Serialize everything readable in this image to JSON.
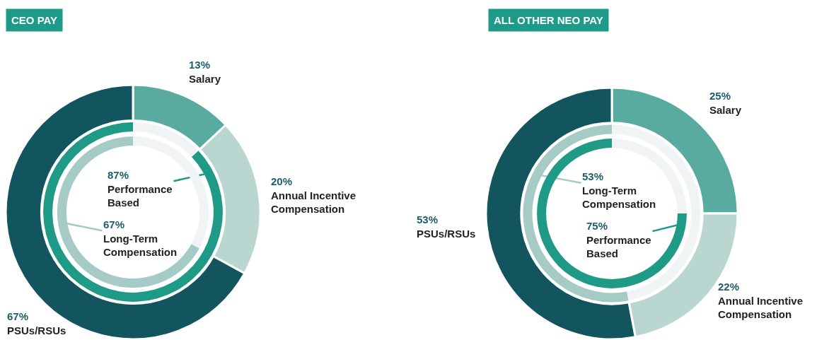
{
  "chart_data": [
    {
      "type": "donut",
      "title": "CEO PAY",
      "categories": [
        "Salary",
        "Annual Incentive Compensation",
        "PSUs/RSUs"
      ],
      "values": [
        13,
        20,
        67
      ],
      "value_labels": [
        "13%",
        "20%",
        "67%"
      ],
      "colors": [
        "#5aab9f",
        "#b9d6d1",
        "#13555e"
      ]
    },
    {
      "type": "donut",
      "categories": [
        "Performance Based",
        null
      ],
      "values": [
        87,
        13
      ],
      "value_labels": [
        "87%",
        null
      ],
      "colors": [
        "#1f9a87",
        "#f1f4f4"
      ]
    },
    {
      "type": "donut",
      "categories": [
        "Long-Term Compensation",
        null
      ],
      "values": [
        67,
        33
      ],
      "value_labels": [
        "67%",
        null
      ],
      "colors": [
        "#a6cbc6",
        "#f1f4f4"
      ]
    },
    {
      "type": "donut",
      "title": "ALL OTHER NEO PAY",
      "categories": [
        "Salary",
        "Annual Incentive Compensation",
        "PSUs/RSUs"
      ],
      "values": [
        25,
        22,
        53
      ],
      "value_labels": [
        "25%",
        "22%",
        "53%"
      ],
      "colors": [
        "#5aab9f",
        "#b9d6d1",
        "#13555e"
      ]
    },
    {
      "type": "donut",
      "categories": [
        "Long-Term Compensation",
        null
      ],
      "values": [
        53,
        47
      ],
      "value_labels": [
        "53%",
        null
      ],
      "colors": [
        "#a6cbc6",
        "#f1f4f4"
      ]
    },
    {
      "type": "donut",
      "categories": [
        "Performance Based",
        null
      ],
      "values": [
        75,
        25
      ],
      "value_labels": [
        "75%",
        null
      ],
      "colors": [
        "#1f9a87",
        "#f1f4f4"
      ]
    }
  ]
}
